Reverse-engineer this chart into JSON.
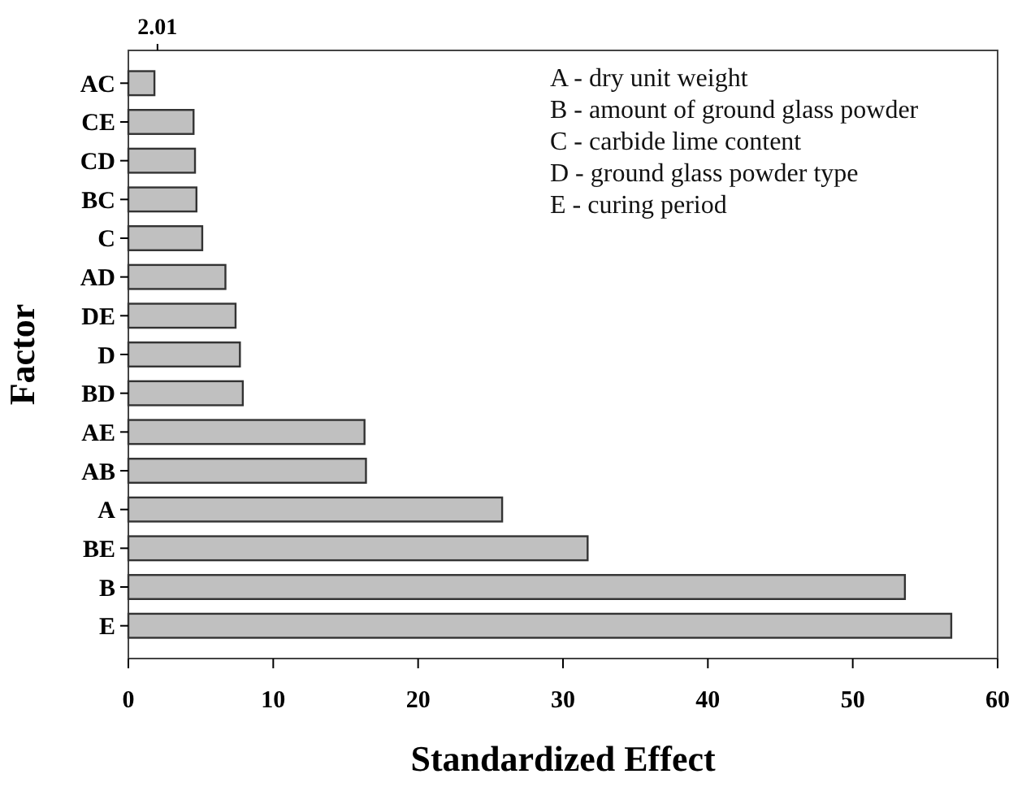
{
  "chart_data": {
    "type": "bar",
    "orientation": "horizontal",
    "xlabel": "Standardized Effect",
    "ylabel": "Factor",
    "categories": [
      "AC",
      "CE",
      "CD",
      "BC",
      "C",
      "AD",
      "DE",
      "D",
      "BD",
      "AE",
      "AB",
      "A",
      "BE",
      "B",
      "E"
    ],
    "values": [
      1.8,
      4.5,
      4.6,
      4.7,
      5.1,
      6.7,
      7.4,
      7.7,
      7.9,
      16.3,
      16.4,
      25.8,
      31.7,
      53.6,
      56.8
    ],
    "color": "#c0c0c0",
    "xlim": [
      0,
      60
    ],
    "xticks": [
      0,
      10,
      20,
      30,
      40,
      50,
      60
    ],
    "ref_lines": [
      {
        "axis": "x",
        "value": 2.01,
        "label": "2.01"
      }
    ],
    "annotations": [
      "A - dry unit weight",
      "B - amount of ground glass powder",
      "C - carbide lime content",
      "D - ground glass powder type",
      "E - curing period"
    ],
    "grid": false
  }
}
